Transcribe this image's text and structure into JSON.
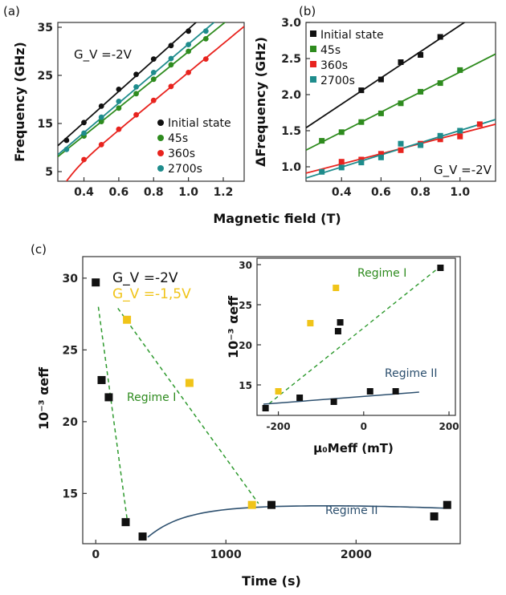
{
  "colors": {
    "black": "#111111",
    "green": "#2e8b1e",
    "red": "#e8231e",
    "teal": "#1e8c8c",
    "yellow": "#f0c419",
    "dashed": "#2e9a2e",
    "solid2": "#2c4f6e"
  },
  "shared_xlabel": "Magnetic field (T)",
  "chart_data": [
    {
      "panel": "(a)",
      "type": "scatter",
      "ylabel": "Frequency (GHz)",
      "annotation": "G_V =-2V",
      "xlim": [
        0.25,
        1.32
      ],
      "ylim": [
        3,
        36
      ],
      "xticks": [
        0.4,
        0.6,
        0.8,
        1.0,
        1.2
      ],
      "yticks": [
        5,
        15,
        25,
        35
      ],
      "legend_position": "bottom-right",
      "series": [
        {
          "name": "Initial state",
          "color": "black",
          "x": [
            0.3,
            0.4,
            0.5,
            0.6,
            0.7,
            0.8,
            0.9,
            1.0
          ],
          "y": [
            11.5,
            15.2,
            18.6,
            22.1,
            25.2,
            28.4,
            31.2,
            34.2
          ]
        },
        {
          "name": "45s",
          "color": "green",
          "x": [
            0.4,
            0.5,
            0.6,
            0.7,
            0.8,
            0.9,
            1.0,
            1.1
          ],
          "y": [
            12.4,
            15.4,
            18.2,
            21.2,
            24.2,
            27.2,
            30.0,
            32.6
          ]
        },
        {
          "name": "360s",
          "color": "red",
          "x": [
            0.4,
            0.5,
            0.6,
            0.7,
            0.8,
            0.9,
            1.0,
            1.1
          ],
          "y": [
            7.5,
            10.6,
            13.8,
            16.8,
            19.8,
            22.7,
            25.6,
            28.4
          ]
        },
        {
          "name": "2700s",
          "color": "teal",
          "x": [
            0.3,
            0.4,
            0.5,
            0.6,
            0.7,
            0.8,
            0.9,
            1.0,
            1.1
          ],
          "y": [
            9.6,
            13.0,
            16.3,
            19.6,
            22.6,
            25.6,
            28.5,
            31.4,
            34.2
          ]
        }
      ]
    },
    {
      "panel": "(b)",
      "type": "scatter",
      "ylabel": "ΔFrequency (GHz)",
      "annotation": "G_V =-2V",
      "xlim": [
        0.22,
        1.18
      ],
      "ylim": [
        0.8,
        3.0
      ],
      "xticks": [
        0.4,
        0.6,
        0.8,
        1.0
      ],
      "yticks": [
        1.0,
        1.5,
        2.0,
        2.5,
        3.0
      ],
      "legend_position": "top-left",
      "series": [
        {
          "name": "Initial state",
          "color": "black",
          "x": [
            0.5,
            0.6,
            0.7,
            0.8,
            0.9
          ],
          "y": [
            2.06,
            2.21,
            2.45,
            2.55,
            2.8
          ]
        },
        {
          "name": "45s",
          "color": "green",
          "x": [
            0.3,
            0.4,
            0.5,
            0.6,
            0.7,
            0.8,
            0.9,
            1.0
          ],
          "y": [
            1.36,
            1.48,
            1.62,
            1.74,
            1.88,
            2.04,
            2.16,
            2.34
          ]
        },
        {
          "name": "360s",
          "color": "red",
          "x": [
            0.4,
            0.5,
            0.6,
            0.7,
            0.8,
            0.9,
            1.0,
            1.1
          ],
          "y": [
            1.07,
            1.1,
            1.18,
            1.23,
            1.32,
            1.38,
            1.42,
            1.59
          ]
        },
        {
          "name": "2700s",
          "color": "teal",
          "x": [
            0.3,
            0.4,
            0.5,
            0.6,
            0.7,
            0.8,
            0.9,
            1.0
          ],
          "y": [
            0.93,
            0.99,
            1.06,
            1.13,
            1.32,
            1.3,
            1.43,
            1.5
          ]
        }
      ]
    },
    {
      "panel": "(c)",
      "type": "scatter",
      "xlabel": "Time (s)",
      "ylabel": "10⁻³ αeff",
      "xlim": [
        -100,
        2800
      ],
      "ylim": [
        11.5,
        31.5
      ],
      "xticks": [
        0,
        1000,
        2000
      ],
      "yticks": [
        15,
        20,
        25,
        30
      ],
      "legend": [
        "G_V =-2V",
        "G_V =-1,5V"
      ],
      "regime_labels": [
        "Regime I",
        "Regime II"
      ],
      "series": [
        {
          "name": "G_V =-2V",
          "color": "black",
          "x": [
            0,
            45,
            100,
            230,
            360,
            1350,
            2600,
            2700
          ],
          "y": [
            29.7,
            22.9,
            21.7,
            13.0,
            12.0,
            14.2,
            13.4,
            14.2
          ]
        },
        {
          "name": "G_V =-1,5V",
          "color": "yellow",
          "x": [
            240,
            720,
            1200
          ],
          "y": [
            27.1,
            22.7,
            14.2
          ]
        }
      ],
      "inset": {
        "xlabel": "μ₀Meff (mT)",
        "ylabel": "10⁻³ αeff",
        "xlim": [
          -250,
          215
        ],
        "ylim": [
          11.2,
          30.8
        ],
        "xticks": [
          -200,
          0,
          200
        ],
        "yticks": [
          15,
          20,
          25,
          30
        ],
        "regime_labels": [
          "Regime I",
          "Regime II"
        ],
        "series": [
          {
            "color": "black",
            "x": [
              -230,
              -150,
              -70,
              -60,
              -55,
              15,
              75,
              180
            ],
            "y": [
              12.1,
              13.4,
              12.9,
              21.7,
              22.8,
              14.2,
              14.2,
              29.6
            ]
          },
          {
            "color": "yellow",
            "x": [
              -200,
              -125,
              -65
            ],
            "y": [
              14.2,
              22.7,
              27.1
            ]
          }
        ]
      }
    }
  ]
}
